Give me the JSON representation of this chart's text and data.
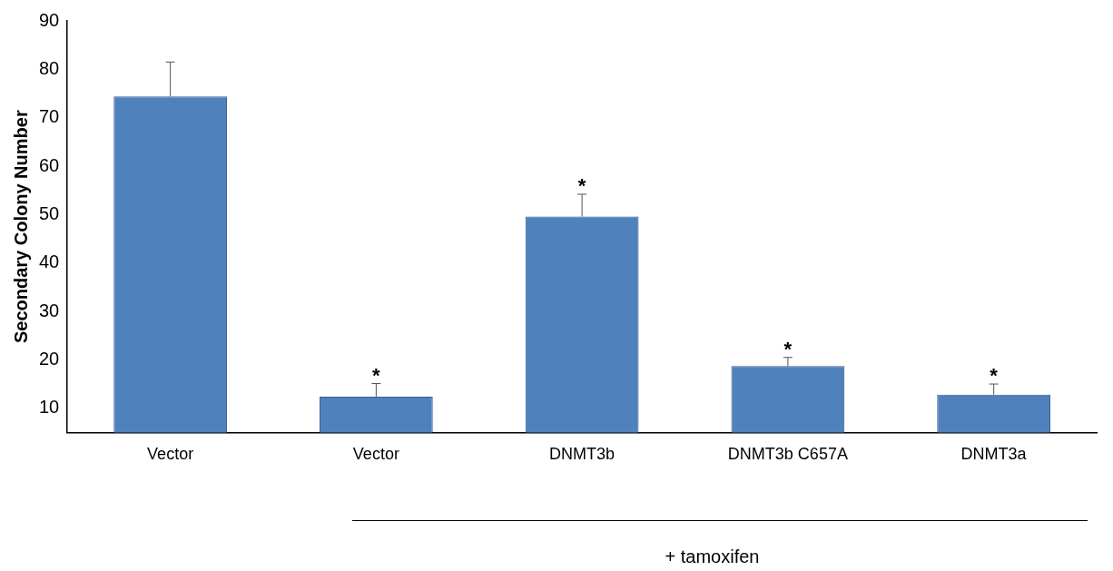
{
  "chart_data": {
    "type": "bar",
    "ylabel": "Secondary Colony Number",
    "categories": [
      "Vector",
      "Vector",
      "DNMT3b",
      "DNMT3b C657A",
      "DNMT3a"
    ],
    "values": [
      74.4,
      12.4,
      49.6,
      18.7,
      12.8
    ],
    "errors": [
      [
        74.4,
        81.5
      ],
      [
        12.4,
        15.1
      ],
      [
        49.6,
        54.2
      ],
      [
        18.7,
        20.5
      ],
      [
        12.8,
        15
      ]
    ],
    "value_labels": [
      null,
      "*",
      "*",
      "*",
      "*"
    ],
    "color": "#4f81bd",
    "ylim": [
      5,
      90
    ],
    "yticks": [
      10,
      20,
      30,
      40,
      50,
      60,
      70,
      80,
      90
    ],
    "grid": false,
    "legend": false,
    "annotations": [
      "+ tamoxifen"
    ]
  }
}
